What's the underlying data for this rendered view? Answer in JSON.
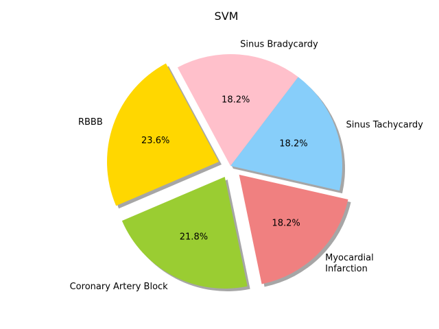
{
  "chart_data": {
    "type": "pie",
    "title": "SVM",
    "slices": [
      {
        "label": "Sinus Tachycardy",
        "value": 18.2,
        "pct_label": "18.2%",
        "color": "#87CEFA",
        "explode": false
      },
      {
        "label": "Sinus Bradycardy",
        "value": 18.2,
        "pct_label": "18.2%",
        "color": "#FFC0CB",
        "explode": false
      },
      {
        "label": "RBBB",
        "value": 23.6,
        "pct_label": "23.6%",
        "color": "#FFD700",
        "explode": true
      },
      {
        "label": "Coronary Artery Block",
        "value": 21.8,
        "pct_label": "21.8%",
        "color": "#9ACD32",
        "explode": true
      },
      {
        "label": "Myocardial\nInfarction",
        "value": 18.2,
        "pct_label": "18.2%",
        "color": "#F08080",
        "explode": true
      }
    ],
    "start_angle": -12.8,
    "direction": "counterclockwise",
    "shadow": true,
    "legend": "none"
  }
}
